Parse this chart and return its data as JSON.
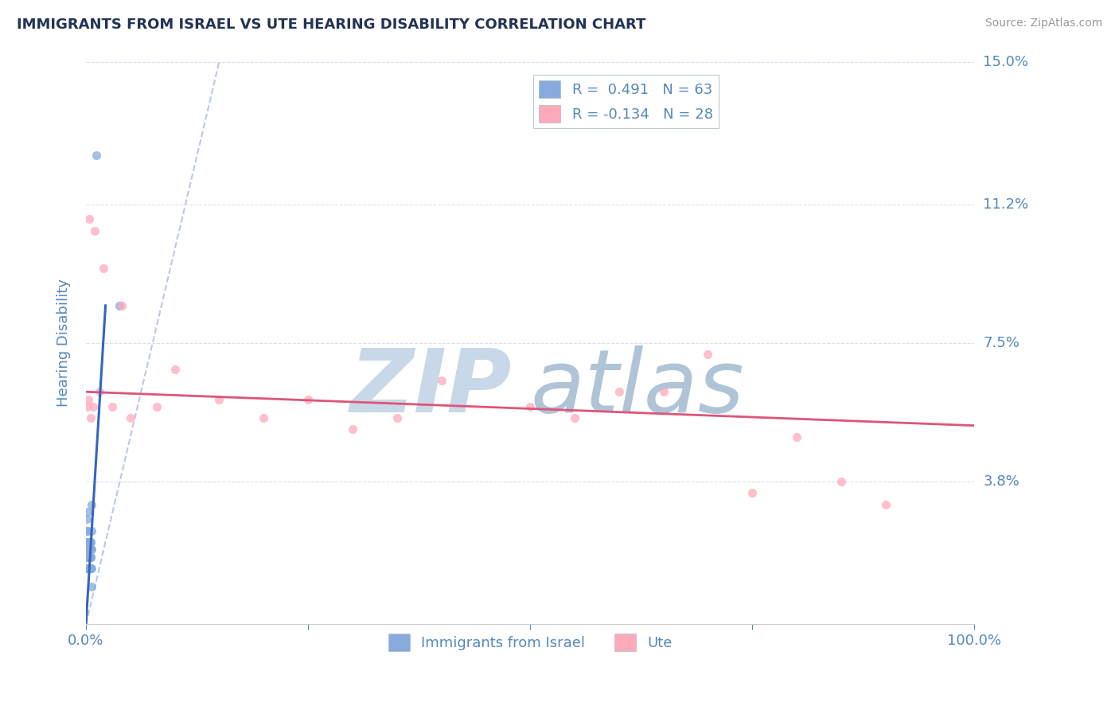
{
  "title": "IMMIGRANTS FROM ISRAEL VS UTE HEARING DISABILITY CORRELATION CHART",
  "source_text": "Source: ZipAtlas.com",
  "ylabel": "Hearing Disability",
  "xlim": [
    0.0,
    100.0
  ],
  "ylim": [
    0.0,
    15.0
  ],
  "ytick_vals": [
    0.0,
    3.8,
    7.5,
    11.2,
    15.0
  ],
  "ytick_labels_right": [
    "",
    "3.8%",
    "7.5%",
    "11.2%",
    "15.0%"
  ],
  "xtick_vals": [
    0,
    25,
    50,
    75,
    100
  ],
  "xtick_labels": [
    "0.0%",
    "",
    "",
    "",
    "100.0%"
  ],
  "legend_label1": "Immigrants from Israel",
  "legend_label2": "Ute",
  "r1": 0.491,
  "n1": 63,
  "r2": -0.134,
  "n2": 28,
  "color_blue": "#88aadd",
  "color_pink": "#ffaabb",
  "color_blue_line": "#3366bb",
  "color_pink_line": "#dd5577",
  "color_dash": "#aabbdd",
  "title_color": "#223355",
  "axis_label_color": "#5588bb",
  "tick_color": "#5588bb",
  "grid_color": "#ddddee",
  "background_color": "#ffffff",
  "watermark_zip": "ZIP",
  "watermark_atlas": "atlas",
  "watermark_color_zip": "#ccddee",
  "watermark_color_atlas": "#bbccdd",
  "blue_scatter_x": [
    0.05,
    0.08,
    0.1,
    0.12,
    0.15,
    0.18,
    0.2,
    0.22,
    0.25,
    0.28,
    0.3,
    0.32,
    0.35,
    0.38,
    0.4,
    0.42,
    0.45,
    0.48,
    0.5,
    0.52,
    0.55,
    0.58,
    0.6,
    0.62,
    0.03,
    0.04,
    0.06,
    0.07,
    0.09,
    0.11,
    0.13,
    0.14,
    0.16,
    0.17,
    0.19,
    0.21,
    0.23,
    0.24,
    0.26,
    0.27,
    0.29,
    0.31,
    0.33,
    0.34,
    0.36,
    0.37,
    0.39,
    0.41,
    0.43,
    0.44,
    0.46,
    0.47,
    0.49,
    0.51,
    0.53,
    0.54,
    0.56,
    0.57,
    0.59,
    0.61,
    1.2,
    3.8,
    0.65
  ],
  "blue_scatter_y": [
    2.2,
    2.5,
    1.5,
    2.8,
    2.0,
    1.8,
    2.5,
    3.0,
    2.2,
    1.5,
    2.0,
    1.5,
    1.8,
    2.2,
    2.0,
    1.5,
    1.8,
    2.0,
    1.5,
    2.0,
    2.2,
    1.8,
    1.0,
    2.5,
    2.0,
    1.5,
    2.0,
    2.2,
    1.5,
    2.0,
    1.5,
    2.0,
    1.8,
    1.5,
    2.0,
    2.2,
    1.8,
    1.5,
    2.0,
    1.5,
    2.2,
    1.8,
    2.0,
    1.5,
    1.8,
    2.2,
    1.5,
    1.8,
    2.0,
    1.5,
    2.0,
    1.5,
    1.5,
    2.0,
    1.8,
    1.5,
    2.2,
    2.0,
    1.5,
    2.0,
    12.5,
    8.5,
    3.2
  ],
  "pink_scatter_x": [
    0.05,
    0.3,
    0.5,
    0.8,
    1.5,
    3.0,
    5.0,
    8.0,
    15.0,
    20.0,
    25.0,
    30.0,
    40.0,
    50.0,
    60.0,
    70.0,
    80.0,
    90.0,
    0.4,
    1.0,
    2.0,
    4.0,
    10.0,
    35.0,
    55.0,
    65.0,
    75.0,
    85.0
  ],
  "pink_scatter_y": [
    5.8,
    6.0,
    5.5,
    5.8,
    6.2,
    5.8,
    5.5,
    5.8,
    6.0,
    5.5,
    6.0,
    5.2,
    6.5,
    5.8,
    6.2,
    7.2,
    5.0,
    3.2,
    10.8,
    10.5,
    9.5,
    8.5,
    6.8,
    5.5,
    5.5,
    6.2,
    3.5,
    3.8
  ],
  "blue_trendline_x": [
    0.0,
    2.2
  ],
  "blue_trendline_y": [
    0.0,
    8.5
  ],
  "pink_trendline_x": [
    0.0,
    100.0
  ],
  "pink_trendline_y": [
    6.2,
    5.3
  ],
  "dash_line_x": [
    0.0,
    15.0
  ],
  "dash_line_y": [
    0.0,
    15.0
  ]
}
